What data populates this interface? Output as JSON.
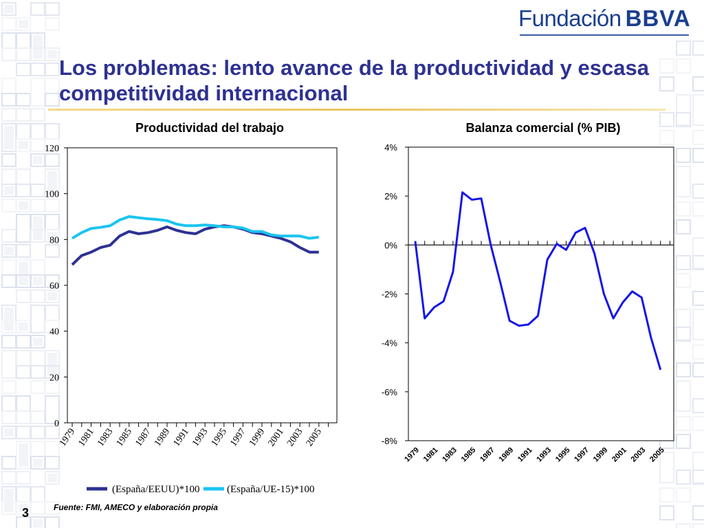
{
  "slide": {
    "logo_text_1": "Fundación",
    "logo_text_2": "BBVA",
    "title": "Los problemas: lento avance de la productividad y escasa competitividad internacional",
    "source": "Fuente:  FMI, AMECO y elaboración propia",
    "page_number": "3",
    "colors": {
      "title": "#2e3192",
      "accent_rule": "#e8c460",
      "logo": "#1a3f8f"
    }
  },
  "chart_data": [
    {
      "type": "line",
      "title": "Productividad del trabajo",
      "xlabel": "",
      "ylabel": "",
      "x": [
        1979,
        1980,
        1981,
        1982,
        1983,
        1984,
        1985,
        1986,
        1987,
        1988,
        1989,
        1990,
        1991,
        1992,
        1993,
        1994,
        1995,
        1996,
        1997,
        1998,
        1999,
        2000,
        2001,
        2002,
        2003,
        2004,
        2005,
        2006
      ],
      "xticks": [
        "1979",
        "1981",
        "1983",
        "1985",
        "1987",
        "1989",
        "1991",
        "1993",
        "1995",
        "1997",
        "1999",
        "2001",
        "2003",
        "2005"
      ],
      "yticks": [
        "0",
        "20",
        "40",
        "60",
        "80",
        "100",
        "120"
      ],
      "ylim": [
        0,
        120
      ],
      "series": [
        {
          "name": "(España/EEUU)*100",
          "color": "#2e3192",
          "values": [
            69,
            73,
            74.5,
            76.5,
            77.5,
            81.5,
            83.5,
            82.5,
            83,
            84,
            85.5,
            84,
            83,
            82.5,
            84.5,
            85.5,
            86,
            85.5,
            84.5,
            83,
            82.5,
            81.5,
            80.5,
            79,
            76.5,
            74.5,
            74.5,
            null
          ]
        },
        {
          "name": "(España/UE-15)*100",
          "color": "#1ac4f0",
          "values": [
            80.5,
            83,
            84.8,
            85.3,
            86,
            88.5,
            90,
            89.5,
            89,
            88.7,
            88.2,
            86.7,
            86,
            86,
            86.3,
            86,
            85.5,
            85.5,
            85,
            83.5,
            83.5,
            82,
            81.5,
            81.5,
            81.5,
            80.5,
            81,
            null
          ]
        }
      ],
      "legend": "bottom"
    },
    {
      "type": "line",
      "title": "Balanza comercial (% PIB)",
      "xlabel": "",
      "ylabel": "",
      "x": [
        1979,
        1980,
        1981,
        1982,
        1983,
        1984,
        1985,
        1986,
        1987,
        1988,
        1989,
        1990,
        1991,
        1992,
        1993,
        1994,
        1995,
        1996,
        1997,
        1998,
        1999,
        2000,
        2001,
        2002,
        2003,
        2004,
        2005,
        2006
      ],
      "xticks": [
        "1979",
        "1981",
        "1983",
        "1985",
        "1987",
        "1989",
        "1991",
        "1993",
        "1995",
        "1997",
        "1999",
        "2001",
        "2003",
        "2005"
      ],
      "yticks": [
        "4%",
        "2%",
        "0%",
        "-2%",
        "-4%",
        "-6%",
        "-8%"
      ],
      "ylim": [
        -8,
        4
      ],
      "series": [
        {
          "name": "",
          "color": "#1515e8",
          "values": [
            0.15,
            -3,
            -2.55,
            -2.3,
            -1.1,
            2.15,
            1.85,
            1.9,
            0,
            -1.5,
            -3.1,
            -3.3,
            -3.25,
            -2.9,
            -0.6,
            0.05,
            -0.2,
            0.5,
            0.7,
            -0.35,
            -2,
            -3,
            -2.35,
            -1.9,
            -2.15,
            -3.8,
            -5.1,
            null
          ]
        }
      ],
      "legend": "none"
    }
  ]
}
